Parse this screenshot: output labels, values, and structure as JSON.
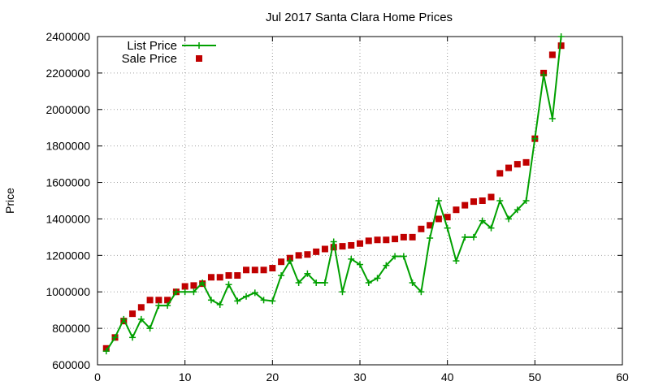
{
  "chart_data": {
    "type": "line",
    "title": "Jul 2017 Santa Clara Home Prices",
    "xlabel": "",
    "ylabel": "Price",
    "xlim": [
      0,
      60
    ],
    "ylim": [
      600000,
      2400000
    ],
    "x_ticks": [
      0,
      10,
      20,
      30,
      40,
      50,
      60
    ],
    "y_ticks": [
      600000,
      800000,
      1000000,
      1200000,
      1400000,
      1600000,
      1800000,
      2000000,
      2200000,
      2400000
    ],
    "grid": true,
    "legend_position": "top-left",
    "colors": {
      "list_price": "#00a000",
      "sale_price": "#c00000",
      "axis": "#000000",
      "grid": "#a0a0a0"
    },
    "series": [
      {
        "name": "List Price",
        "style": "line+cross",
        "x": [
          1,
          2,
          3,
          4,
          5,
          6,
          7,
          8,
          9,
          10,
          11,
          12,
          13,
          14,
          15,
          16,
          17,
          18,
          19,
          20,
          21,
          22,
          23,
          24,
          25,
          26,
          27,
          28,
          29,
          30,
          31,
          32,
          33,
          34,
          35,
          36,
          37,
          38,
          39,
          40,
          41,
          42,
          43,
          44,
          45,
          46,
          47,
          48,
          49,
          50,
          51,
          52,
          53
        ],
        "y": [
          675000,
          750000,
          850000,
          750000,
          850000,
          800000,
          925000,
          925000,
          1000000,
          1000000,
          1000000,
          1050000,
          955000,
          930000,
          1040000,
          950000,
          975000,
          995000,
          955000,
          950000,
          1090000,
          1170000,
          1050000,
          1100000,
          1050000,
          1050000,
          1275000,
          1000000,
          1180000,
          1150000,
          1050000,
          1075000,
          1145000,
          1195000,
          1195000,
          1050000,
          1000000,
          1295000,
          1500000,
          1350000,
          1170000,
          1300000,
          1300000,
          1390000,
          1350000,
          1500000,
          1400000,
          1450000,
          1500000,
          1840000,
          2190000,
          1950000,
          2400000
        ]
      },
      {
        "name": "Sale Price",
        "style": "square",
        "x": [
          1,
          2,
          3,
          4,
          5,
          6,
          7,
          8,
          9,
          10,
          11,
          12,
          13,
          14,
          15,
          16,
          17,
          18,
          19,
          20,
          21,
          22,
          23,
          24,
          25,
          26,
          27,
          28,
          29,
          30,
          31,
          32,
          33,
          34,
          35,
          36,
          37,
          38,
          39,
          40,
          41,
          42,
          43,
          44,
          45,
          46,
          47,
          48,
          49,
          50,
          51,
          52,
          53
        ],
        "y": [
          690000,
          750000,
          840000,
          880000,
          915000,
          955000,
          955000,
          955000,
          1000000,
          1030000,
          1035000,
          1045000,
          1080000,
          1080000,
          1090000,
          1090000,
          1120000,
          1120000,
          1120000,
          1130000,
          1165000,
          1185000,
          1200000,
          1205000,
          1220000,
          1235000,
          1245000,
          1250000,
          1255000,
          1265000,
          1280000,
          1285000,
          1285000,
          1290000,
          1300000,
          1300000,
          1345000,
          1365000,
          1400000,
          1410000,
          1450000,
          1475000,
          1495000,
          1500000,
          1520000,
          1650000,
          1680000,
          1700000,
          1710000,
          1840000,
          2200000,
          2300000,
          2350000
        ]
      }
    ]
  }
}
